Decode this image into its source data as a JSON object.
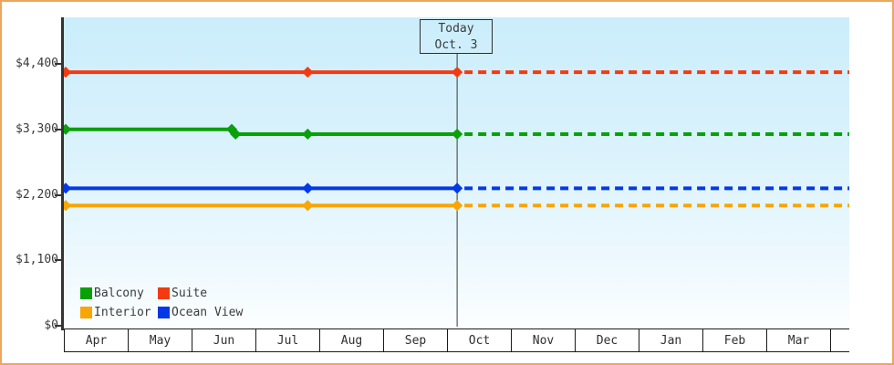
{
  "theme": {
    "frame_border_color": "#eaa75e",
    "axis_color": "#333333",
    "text_color": "#3b3b3b",
    "plot_gradient_top": "#cbedfb",
    "plot_gradient_bottom": "#fbfeff"
  },
  "chart_data": {
    "type": "line",
    "title": "",
    "description": "Cruise cabin price history by category with dashed forecast after today marker",
    "x_axis": {
      "categories": [
        "Apr",
        "May",
        "Jun",
        "Jul",
        "Aug",
        "Sep",
        "Oct",
        "Nov",
        "Dec",
        "Jan",
        "Feb",
        "Mar"
      ]
    },
    "y_axis": {
      "tick_labels": [
        "$0",
        "$1,100",
        "$2,200",
        "$3,300",
        "$4,400"
      ],
      "tick_values": [
        0,
        1100,
        2200,
        3300,
        4400
      ],
      "ylim": [
        0,
        5180
      ],
      "grid": false
    },
    "today": {
      "line1": "Today",
      "line2": "Oct. 3",
      "month_position": 6.13
    },
    "series": [
      {
        "name": "Balcony",
        "color": "#0aa00a",
        "solid_points": [
          [
            0,
            3300
          ],
          [
            2.6,
            3300
          ],
          [
            2.66,
            3220
          ],
          [
            3.79,
            3220
          ],
          [
            6.13,
            3220
          ]
        ],
        "marker_points": [
          [
            0,
            3300
          ],
          [
            2.6,
            3300
          ],
          [
            2.66,
            3220
          ],
          [
            3.79,
            3220
          ],
          [
            6.13,
            3220
          ]
        ],
        "forecast_value": 3220
      },
      {
        "name": "Suite",
        "color": "#f23b10",
        "solid_points": [
          [
            0,
            4260
          ],
          [
            3.79,
            4260
          ],
          [
            6.13,
            4260
          ]
        ],
        "marker_points": [
          [
            0,
            4260
          ],
          [
            3.79,
            4260
          ],
          [
            6.13,
            4260
          ]
        ],
        "forecast_value": 4260
      },
      {
        "name": "Interior",
        "color": "#f9a503",
        "solid_points": [
          [
            0,
            2020
          ],
          [
            3.79,
            2020
          ],
          [
            6.13,
            2020
          ]
        ],
        "marker_points": [
          [
            0,
            2020
          ],
          [
            3.79,
            2020
          ],
          [
            6.13,
            2020
          ]
        ],
        "forecast_value": 2020
      },
      {
        "name": "Ocean View",
        "color": "#0338e8",
        "solid_points": [
          [
            0,
            2310
          ],
          [
            3.79,
            2310
          ],
          [
            6.13,
            2310
          ]
        ],
        "marker_points": [
          [
            0,
            2310
          ],
          [
            3.79,
            2310
          ],
          [
            6.13,
            2310
          ]
        ],
        "forecast_value": 2310
      }
    ],
    "legend": {
      "position": "bottom-left",
      "order": [
        "Balcony",
        "Suite",
        "Interior",
        "Ocean View"
      ]
    }
  }
}
